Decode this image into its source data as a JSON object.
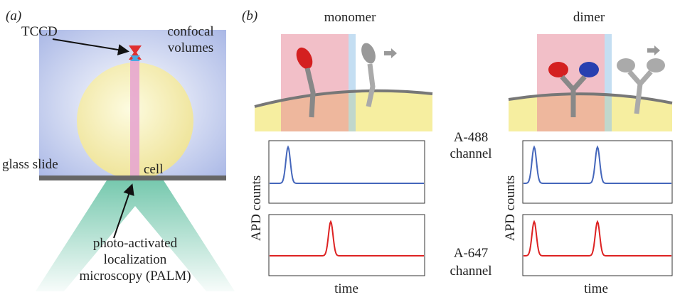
{
  "panel_a": {
    "label": "(a)",
    "tccd": "TCCD",
    "confocal": [
      "confocal",
      "volumes"
    ],
    "cell": "cell",
    "glass_slide": "glass slide",
    "palm": [
      "photo-activated",
      "localization",
      "microscopy (PALM)"
    ]
  },
  "panel_b": {
    "label": "(b)",
    "monomer": {
      "title": "monomer",
      "y_label": "APD counts",
      "x_label": "time"
    },
    "dimer": {
      "title": "dimer",
      "y_label": "APD counts",
      "x_label": "time"
    },
    "channels": [
      [
        "A-488",
        "channel"
      ],
      [
        "A-647",
        "channel"
      ]
    ]
  }
}
